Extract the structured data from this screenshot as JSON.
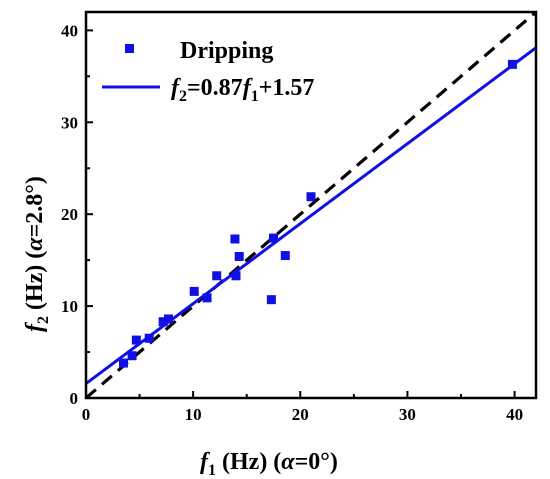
{
  "chart_data": {
    "type": "scatter",
    "xlim": [
      0,
      42
    ],
    "ylim": [
      0,
      42
    ],
    "xticks": [
      0,
      10,
      20,
      30,
      40
    ],
    "yticks": [
      0,
      10,
      20,
      30,
      40
    ],
    "xlabel": {
      "var": "f",
      "sub": "1",
      "unit": " (Hz) (",
      "greek": "α",
      "cond": "=0°)"
    },
    "ylabel": {
      "var": "f",
      "sub": "2",
      "unit": " (Hz) (",
      "greek": "α",
      "cond": "=2.8°)"
    },
    "grid": false,
    "legend_position": "top-left",
    "series": [
      {
        "name": "Dripping",
        "kind": "scatter",
        "marker": "square",
        "color": "#1010e6",
        "points": [
          [
            3.5,
            3.8
          ],
          [
            4.3,
            4.6
          ],
          [
            4.7,
            6.3
          ],
          [
            5.9,
            6.5
          ],
          [
            7.2,
            8.3
          ],
          [
            7.7,
            8.6
          ],
          [
            10.1,
            11.6
          ],
          [
            11.3,
            10.9
          ],
          [
            12.2,
            13.3
          ],
          [
            13.9,
            17.3
          ],
          [
            14.0,
            13.3
          ],
          [
            14.3,
            15.4
          ],
          [
            17.3,
            10.7
          ],
          [
            17.5,
            17.4
          ],
          [
            18.6,
            15.5
          ],
          [
            21.0,
            21.9
          ],
          [
            39.8,
            36.3
          ]
        ]
      },
      {
        "name": {
          "var": "f",
          "sub": "2",
          "mid": "=0.87",
          "var2": "f",
          "sub2": "1",
          "tail": "+1.57"
        },
        "kind": "line",
        "slope": 0.87,
        "intercept": 1.57,
        "color": "#1010e6"
      },
      {
        "kind": "reference-line",
        "style": "dashed",
        "slope": 1,
        "intercept": 0,
        "color": "#000000"
      }
    ]
  }
}
